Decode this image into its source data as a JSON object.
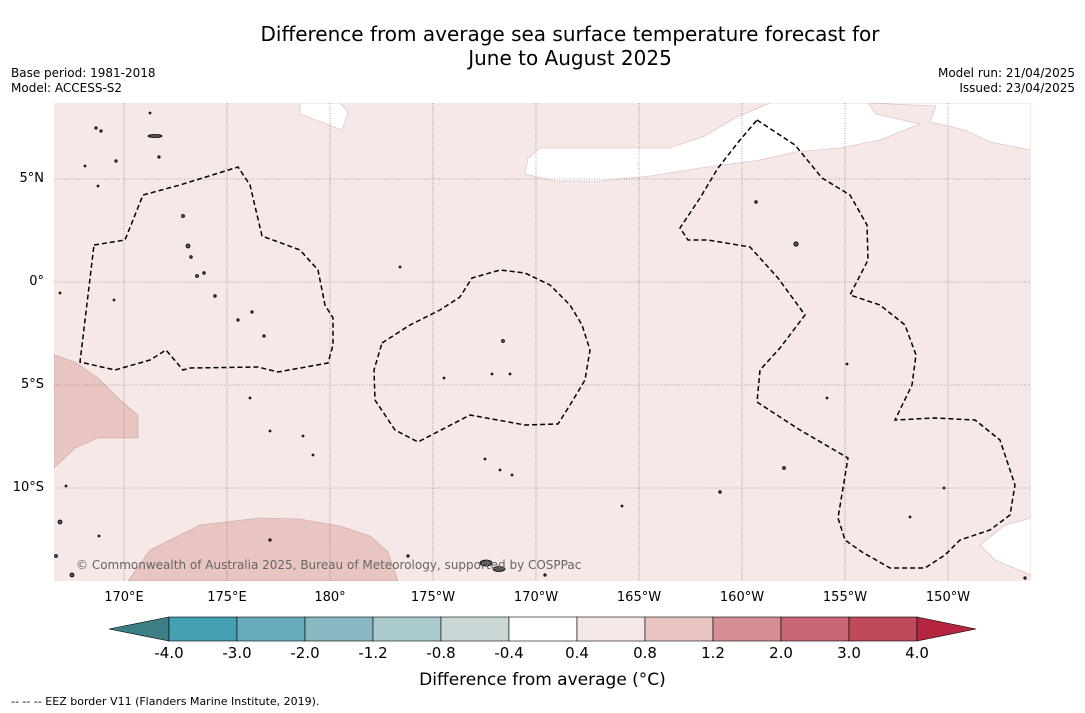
{
  "title_line1": "Difference from average sea surface temperature forecast for",
  "title_line2": "June to August 2025",
  "meta": {
    "base_period": "Base period: 1981-2018",
    "model": "Model: ACCESS-S2",
    "model_run": "Model run: 21/04/2025",
    "issued": "Issued: 23/04/2025"
  },
  "latitude_labels": [
    "5°N",
    "0°",
    "5°S",
    "10°S"
  ],
  "longitude_labels": [
    "170°E",
    "175°E",
    "180°",
    "175°W",
    "170°W",
    "165°W",
    "160°W",
    "155°W",
    "150°W"
  ],
  "copyright": "© Commonwealth of Australia 2025, Bureau of Meteorology, supported by COSPPac",
  "colorbar": {
    "title": "Difference from average (°C)",
    "ticks": [
      "-4.0",
      "-3.0",
      "-2.0",
      "-1.2",
      "-0.8",
      "-0.4",
      "0.4",
      "0.8",
      "1.2",
      "2.0",
      "3.0",
      "4.0"
    ],
    "colors": {
      "under": "#3d7f86",
      "bins": [
        "#45a0b2",
        "#68abbb",
        "#89b7c2",
        "#aacacd",
        "#cad7d7",
        "#ffffff",
        "#f5e8e6",
        "#e8c5c1",
        "#d48e94",
        "#c96673",
        "#bf4a5a"
      ],
      "over": "#b5253f"
    }
  },
  "map_colors": {
    "background_anomaly": "#f5e8e6",
    "warm_patch": "#e8c5c1",
    "neutral": "#ffffff",
    "grid": "#666666",
    "eez_border": "#000000"
  },
  "legend_note": "--  --  -- EEZ border V11 (Flanders Marine Institute, 2019)."
}
